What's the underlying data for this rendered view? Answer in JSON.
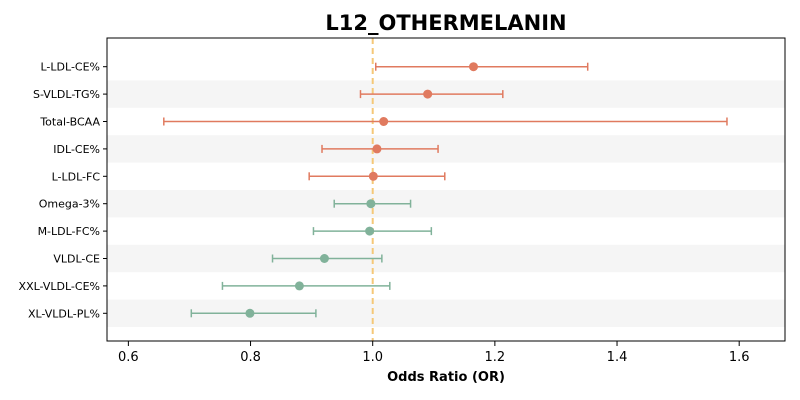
{
  "chart_data": {
    "type": "forest",
    "title": "L12_OTHERMELANIN",
    "xlabel": "Odds Ratio (OR)",
    "xlim": [
      0.565,
      1.675
    ],
    "xticks": [
      0.6,
      0.8,
      1.0,
      1.2,
      1.4,
      1.6
    ],
    "xtick_labels": [
      "0.6",
      "0.8",
      "1.0",
      "1.2",
      "1.4",
      "1.6"
    ],
    "reference_line": 1.0,
    "reference_color": "#f5c878",
    "positive_color": "#e07a5f",
    "negative_color": "#81b29a",
    "stripe_color": "#f5f5f5",
    "grid": false,
    "rows": [
      {
        "label": "L-LDL-CE%",
        "or": 1.165,
        "lower": 1.005,
        "upper": 1.352
      },
      {
        "label": "S-VLDL-TG%",
        "or": 1.09,
        "lower": 0.98,
        "upper": 1.213
      },
      {
        "label": "Total-BCAA",
        "or": 1.018,
        "lower": 0.658,
        "upper": 1.58
      },
      {
        "label": "IDL-CE%",
        "or": 1.007,
        "lower": 0.917,
        "upper": 1.107
      },
      {
        "label": "L-LDL-FC",
        "or": 1.001,
        "lower": 0.896,
        "upper": 1.118
      },
      {
        "label": "Omega-3%",
        "or": 0.997,
        "lower": 0.937,
        "upper": 1.062
      },
      {
        "label": "M-LDL-FC%",
        "or": 0.995,
        "lower": 0.903,
        "upper": 1.096
      },
      {
        "label": "VLDL-CE",
        "or": 0.921,
        "lower": 0.836,
        "upper": 1.015
      },
      {
        "label": "XXL-VLDL-CE%",
        "or": 0.88,
        "lower": 0.754,
        "upper": 1.028
      },
      {
        "label": "XL-VLDL-PL%",
        "or": 0.799,
        "lower": 0.703,
        "upper": 0.907
      }
    ]
  }
}
